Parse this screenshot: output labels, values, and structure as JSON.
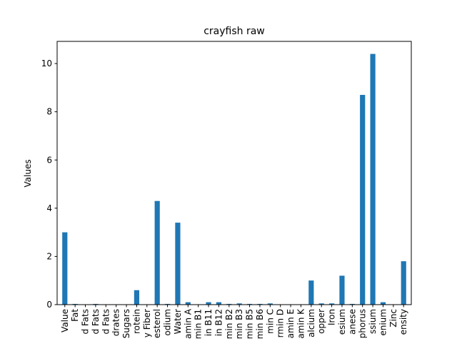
{
  "chart_data": {
    "type": "bar",
    "title": "crayfish raw",
    "xlabel": "",
    "ylabel": "Values",
    "ylim": [
      0,
      10.92
    ],
    "yticks": [
      0,
      2,
      4,
      6,
      8,
      10
    ],
    "grid": false,
    "legend": "none",
    "bar_color": "#1f77b4",
    "categories": [
      "Value",
      "Fat",
      "d Fats",
      "d Fats",
      "d Fats",
      "drates",
      "Sugars",
      "rotein",
      "y Fiber",
      "esterol",
      "odium",
      "Water",
      "amin A",
      "min B1",
      "in B11",
      "in B12",
      "min B2",
      "min B3",
      "min B5",
      "min B6",
      "min C",
      "rmin D",
      "amin E",
      "amin K",
      "alcium",
      "opper",
      "Iron",
      "esium",
      "anese",
      "phorus",
      "ssium",
      "enium",
      "Zinc",
      "ensity"
    ],
    "values": [
      3.0,
      0.03,
      0.0,
      0.03,
      0.0,
      0.0,
      0.0,
      0.6,
      0.0,
      4.3,
      0.03,
      3.4,
      0.1,
      0.0,
      0.1,
      0.1,
      0.03,
      0.05,
      0.03,
      0.03,
      0.05,
      0.0,
      0.0,
      0.0,
      1.0,
      0.05,
      0.05,
      1.2,
      0.03,
      8.7,
      10.4,
      0.1,
      0.0,
      1.8
    ]
  }
}
